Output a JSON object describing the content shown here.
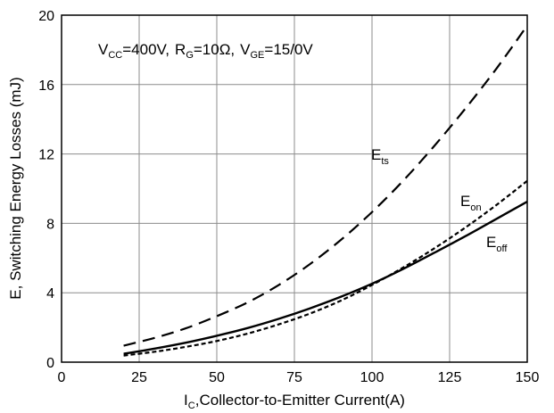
{
  "chart_data": {
    "type": "line",
    "title": "",
    "annotation": {
      "vcc_sym": "V",
      "vcc_sub": "CC",
      "vcc_val": "=400V,",
      "rg_sym": "R",
      "rg_sub": "G",
      "rg_val": "=10Ω,",
      "vge_sym": "V",
      "vge_sub": "GE",
      "vge_val": "=15/0V"
    },
    "xlabel": {
      "sym": "I",
      "sub": "C",
      "text": ",Collector-to-Emitter Current(A)"
    },
    "ylabel": "E, Switching Energy Losses (mJ)",
    "xlim": [
      0,
      150
    ],
    "ylim": [
      0,
      20
    ],
    "xticks": [
      0,
      25,
      50,
      75,
      100,
      125,
      150
    ],
    "yticks": [
      0,
      4,
      8,
      12,
      16,
      20
    ],
    "grid": true,
    "series": [
      {
        "name": "E_ts",
        "label_sym": "E",
        "label_sub": "ts",
        "style": "dashed",
        "x": [
          20,
          30,
          40,
          50,
          60,
          70,
          80,
          90,
          100,
          110,
          120,
          130,
          140,
          150
        ],
        "y": [
          0.95,
          1.4,
          1.95,
          2.65,
          3.45,
          4.45,
          5.65,
          7.05,
          8.65,
          10.45,
          12.45,
          14.6,
          16.9,
          19.4
        ]
      },
      {
        "name": "E_on",
        "label_sym": "E",
        "label_sub": "on",
        "style": "dotted",
        "x": [
          20,
          30,
          40,
          50,
          60,
          70,
          80,
          90,
          100,
          110,
          120,
          130,
          140,
          150
        ],
        "y": [
          0.38,
          0.6,
          0.88,
          1.22,
          1.65,
          2.18,
          2.8,
          3.55,
          4.45,
          5.45,
          6.55,
          7.75,
          9.05,
          10.45
        ]
      },
      {
        "name": "E_off",
        "label_sym": "E",
        "label_sub": "off",
        "style": "solid",
        "x": [
          20,
          30,
          40,
          50,
          60,
          70,
          80,
          90,
          100,
          110,
          120,
          130,
          140,
          150
        ],
        "y": [
          0.48,
          0.78,
          1.12,
          1.52,
          1.97,
          2.5,
          3.1,
          3.77,
          4.52,
          5.37,
          6.3,
          7.25,
          8.25,
          9.25
        ]
      }
    ]
  }
}
